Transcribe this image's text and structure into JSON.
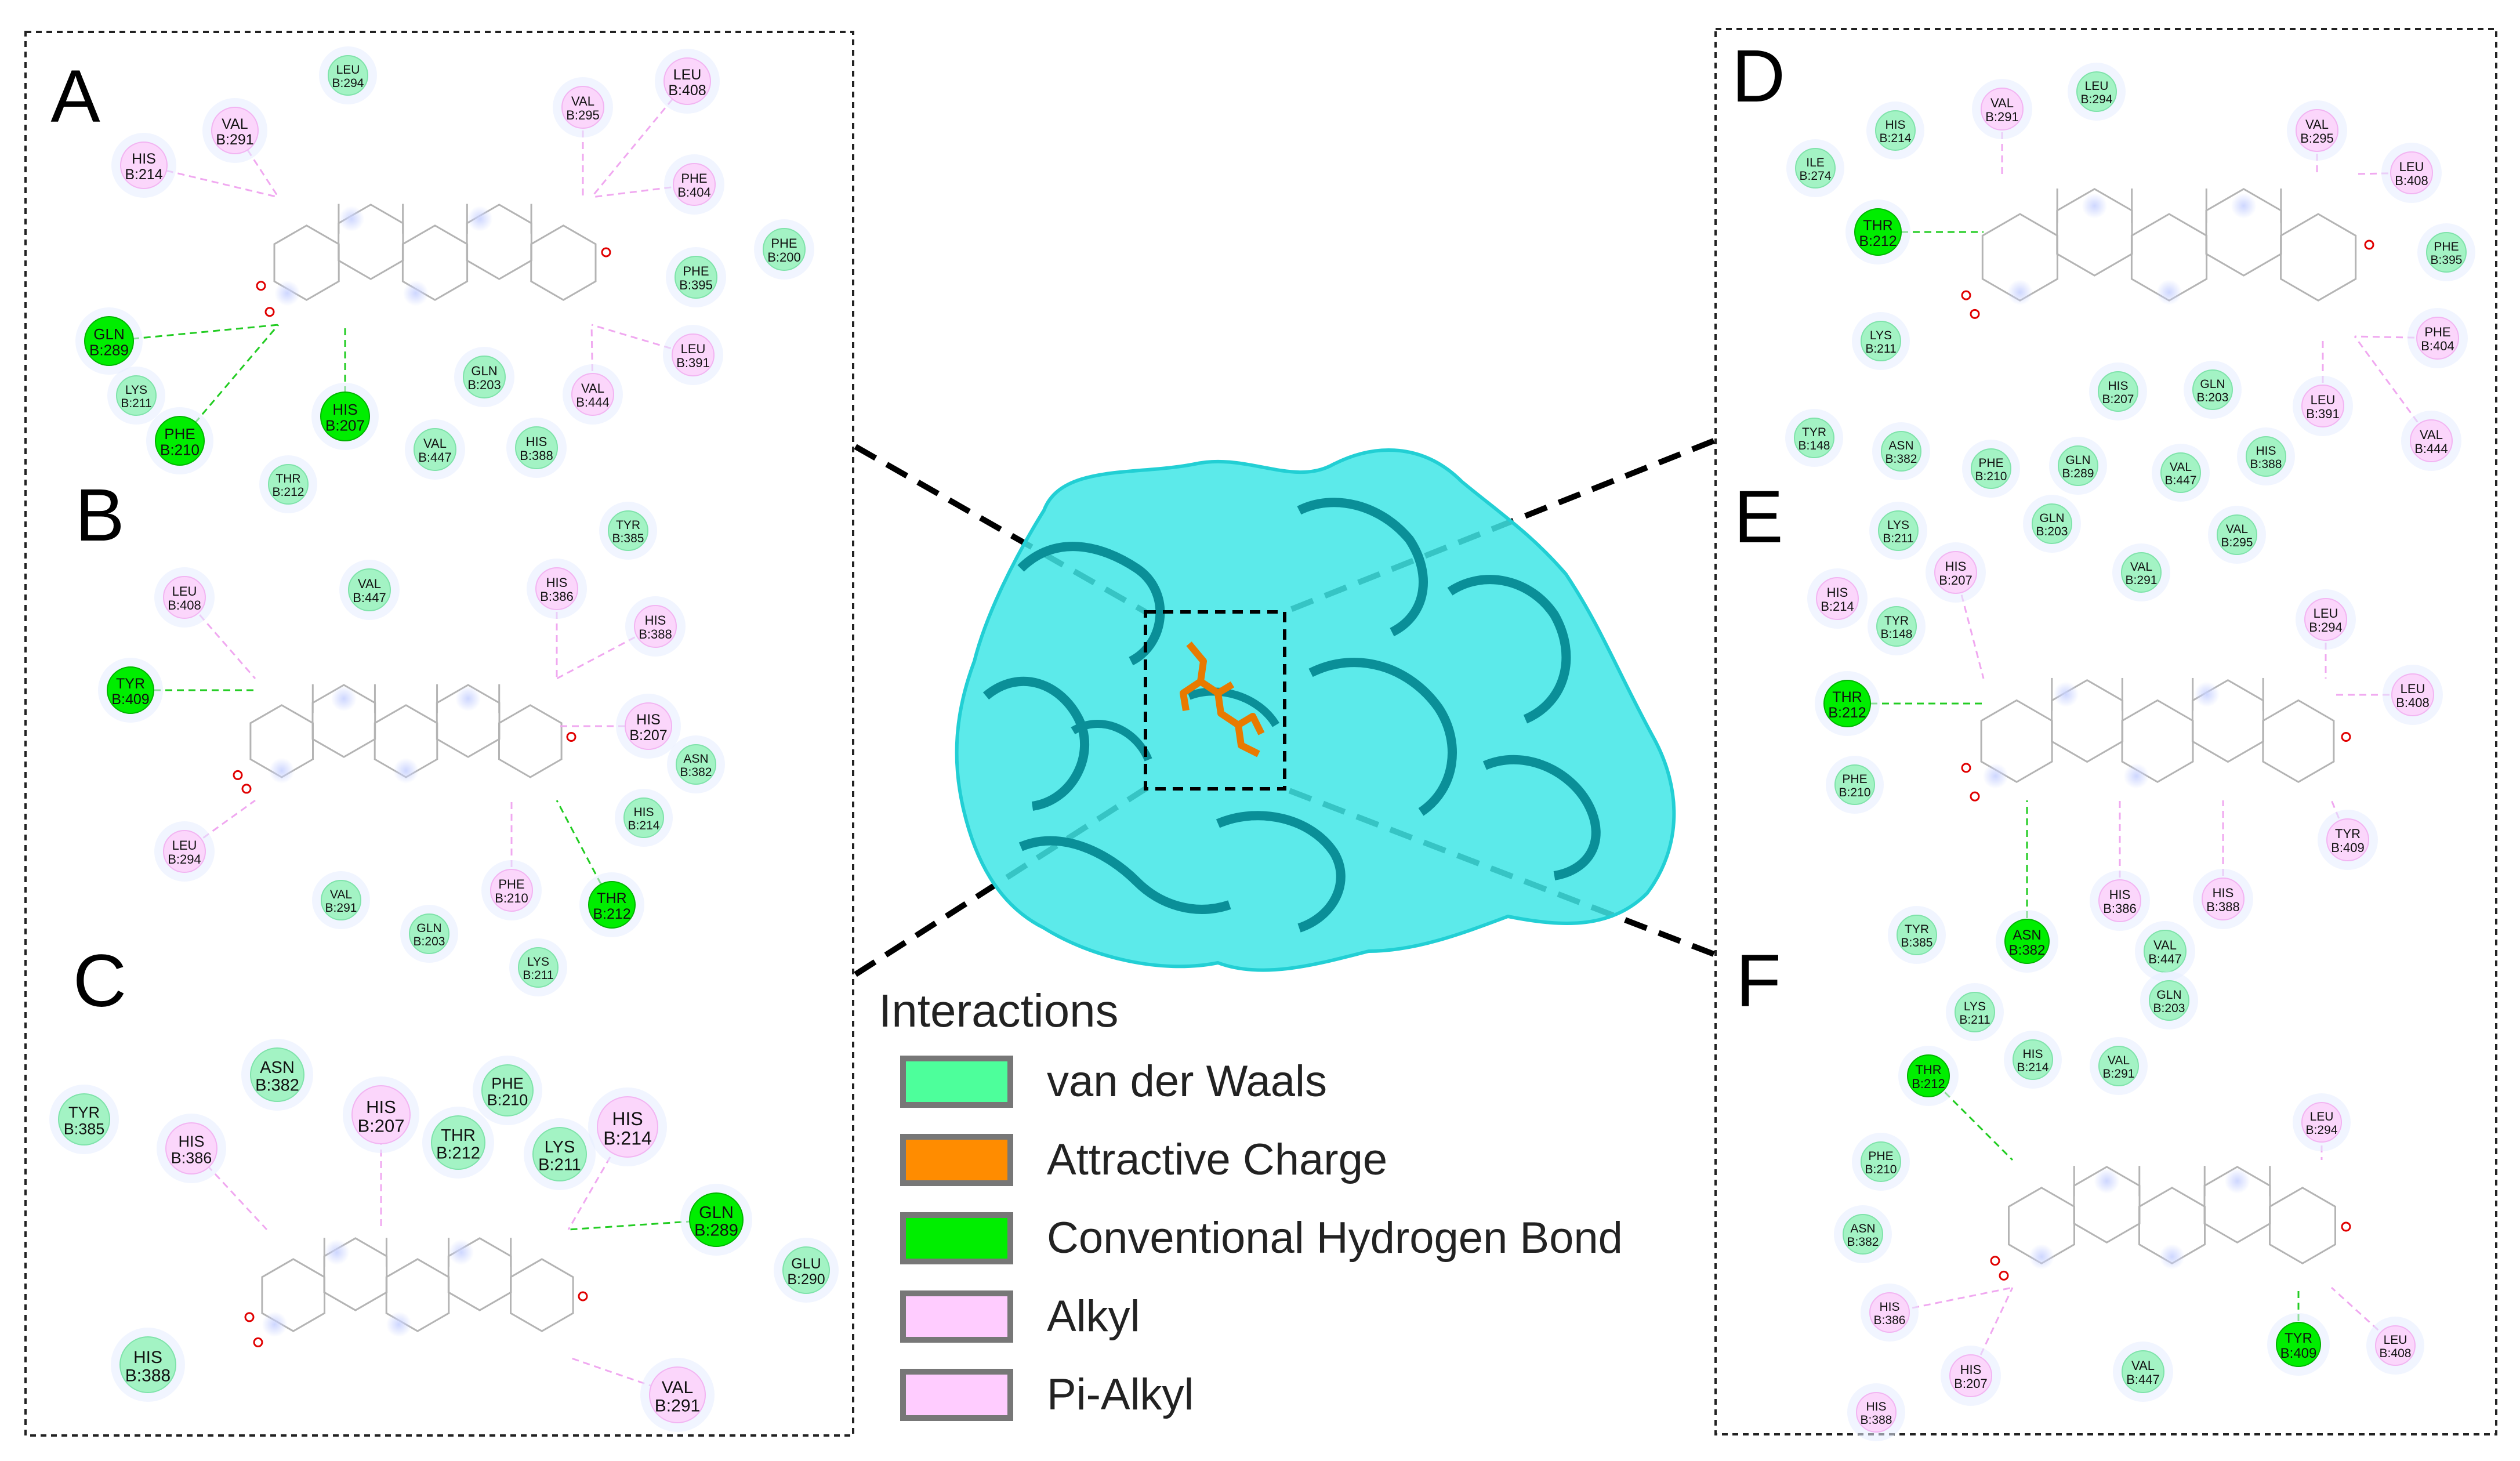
{
  "colors": {
    "vdw": "#4dff9b",
    "vdw_fill": "#a3f3c4",
    "charge": "#ff8c00",
    "hbond": "#00ee00",
    "alkyl": "#ffccff",
    "alkyl_fill": "#fbd6fb",
    "protein": "#00d8d8",
    "protein_dark": "#00a0a8",
    "ligand": "#e87a00"
  },
  "panels": [
    {
      "letter": "A",
      "residues": [
        {
          "name": "LEU",
          "num": "B:294",
          "type": "vdw"
        },
        {
          "name": "VAL",
          "num": "B:291",
          "type": "alkyl"
        },
        {
          "name": "VAL",
          "num": "B:295",
          "type": "alkyl"
        },
        {
          "name": "LEU",
          "num": "B:408",
          "type": "alkyl"
        },
        {
          "name": "HIS",
          "num": "B:214",
          "type": "alkyl"
        },
        {
          "name": "PHE",
          "num": "B:404",
          "type": "alkyl"
        },
        {
          "name": "PHE",
          "num": "B:200",
          "type": "vdw"
        },
        {
          "name": "PHE",
          "num": "B:395",
          "type": "vdw"
        },
        {
          "name": "GLN",
          "num": "B:289",
          "type": "hbond"
        },
        {
          "name": "LEU",
          "num": "B:391",
          "type": "alkyl"
        },
        {
          "name": "LYS",
          "num": "B:211",
          "type": "vdw"
        },
        {
          "name": "GLN",
          "num": "B:203",
          "type": "vdw"
        },
        {
          "name": "VAL",
          "num": "B:444",
          "type": "alkyl"
        },
        {
          "name": "HIS",
          "num": "B:207",
          "type": "hbond"
        },
        {
          "name": "PHE",
          "num": "B:210",
          "type": "hbond"
        },
        {
          "name": "VAL",
          "num": "B:447",
          "type": "vdw"
        },
        {
          "name": "HIS",
          "num": "B:388",
          "type": "vdw"
        },
        {
          "name": "THR",
          "num": "B:212",
          "type": "vdw"
        }
      ]
    },
    {
      "letter": "B",
      "residues": [
        {
          "name": "TYR",
          "num": "B:385",
          "type": "vdw"
        },
        {
          "name": "LEU",
          "num": "B:408",
          "type": "alkyl"
        },
        {
          "name": "VAL",
          "num": "B:447",
          "type": "vdw"
        },
        {
          "name": "HIS",
          "num": "B:386",
          "type": "alkyl"
        },
        {
          "name": "HIS",
          "num": "B:388",
          "type": "alkyl"
        },
        {
          "name": "TYR",
          "num": "B:409",
          "type": "hbond"
        },
        {
          "name": "HIS",
          "num": "B:207",
          "type": "alkyl"
        },
        {
          "name": "ASN",
          "num": "B:382",
          "type": "vdw"
        },
        {
          "name": "HIS",
          "num": "B:214",
          "type": "vdw"
        },
        {
          "name": "LEU",
          "num": "B:294",
          "type": "alkyl"
        },
        {
          "name": "VAL",
          "num": "B:291",
          "type": "vdw"
        },
        {
          "name": "PHE",
          "num": "B:210",
          "type": "alkyl"
        },
        {
          "name": "THR",
          "num": "B:212",
          "type": "hbond"
        },
        {
          "name": "GLN",
          "num": "B:203",
          "type": "vdw"
        },
        {
          "name": "LYS",
          "num": "B:211",
          "type": "vdw"
        }
      ]
    },
    {
      "letter": "C",
      "residues": [
        {
          "name": "TYR",
          "num": "B:385",
          "type": "vdw"
        },
        {
          "name": "ASN",
          "num": "B:382",
          "type": "vdw"
        },
        {
          "name": "HIS",
          "num": "B:386",
          "type": "alkyl"
        },
        {
          "name": "HIS",
          "num": "B:207",
          "type": "alkyl"
        },
        {
          "name": "PHE",
          "num": "B:210",
          "type": "vdw"
        },
        {
          "name": "THR",
          "num": "B:212",
          "type": "vdw"
        },
        {
          "name": "LYS",
          "num": "B:211",
          "type": "vdw"
        },
        {
          "name": "HIS",
          "num": "B:214",
          "type": "alkyl"
        },
        {
          "name": "GLN",
          "num": "B:289",
          "type": "hbond"
        },
        {
          "name": "GLU",
          "num": "B:290",
          "type": "vdw"
        },
        {
          "name": "HIS",
          "num": "B:388",
          "type": "vdw"
        },
        {
          "name": "VAL",
          "num": "B:291",
          "type": "alkyl"
        }
      ]
    },
    {
      "letter": "D",
      "residues": [
        {
          "name": "LEU",
          "num": "B:294",
          "type": "vdw"
        },
        {
          "name": "VAL",
          "num": "B:291",
          "type": "alkyl"
        },
        {
          "name": "HIS",
          "num": "B:214",
          "type": "vdw"
        },
        {
          "name": "VAL",
          "num": "B:295",
          "type": "alkyl"
        },
        {
          "name": "ILE",
          "num": "B:274",
          "type": "vdw"
        },
        {
          "name": "LEU",
          "num": "B:408",
          "type": "alkyl"
        },
        {
          "name": "THR",
          "num": "B:212",
          "type": "hbond"
        },
        {
          "name": "PHE",
          "num": "B:395",
          "type": "vdw"
        },
        {
          "name": "LYS",
          "num": "B:211",
          "type": "vdw"
        },
        {
          "name": "PHE",
          "num": "B:404",
          "type": "alkyl"
        },
        {
          "name": "HIS",
          "num": "B:207",
          "type": "vdw"
        },
        {
          "name": "GLN",
          "num": "B:203",
          "type": "vdw"
        },
        {
          "name": "LEU",
          "num": "B:391",
          "type": "alkyl"
        },
        {
          "name": "TYR",
          "num": "B:148",
          "type": "vdw"
        },
        {
          "name": "ASN",
          "num": "B:382",
          "type": "vdw"
        },
        {
          "name": "PHE",
          "num": "B:210",
          "type": "vdw"
        },
        {
          "name": "GLN",
          "num": "B:289",
          "type": "vdw"
        },
        {
          "name": "VAL",
          "num": "B:447",
          "type": "vdw"
        },
        {
          "name": "HIS",
          "num": "B:388",
          "type": "vdw"
        },
        {
          "name": "VAL",
          "num": "B:444",
          "type": "alkyl"
        },
        {
          "name": "LYS",
          "num": "B:211",
          "type": "vdw"
        },
        {
          "name": "GLN",
          "num": "B:203",
          "type": "vdw"
        },
        {
          "name": "VAL",
          "num": "B:295",
          "type": "vdw"
        },
        {
          "name": "VAL",
          "num": "B:291",
          "type": "vdw"
        }
      ]
    },
    {
      "letter": "E",
      "residues": [
        {
          "name": "HIS",
          "num": "B:214",
          "type": "alkyl"
        },
        {
          "name": "HIS",
          "num": "B:207",
          "type": "alkyl"
        },
        {
          "name": "TYR",
          "num": "B:148",
          "type": "vdw"
        },
        {
          "name": "LEU",
          "num": "B:294",
          "type": "alkyl"
        },
        {
          "name": "THR",
          "num": "B:212",
          "type": "hbond"
        },
        {
          "name": "LEU",
          "num": "B:408",
          "type": "alkyl"
        },
        {
          "name": "PHE",
          "num": "B:210",
          "type": "vdw"
        },
        {
          "name": "TYR",
          "num": "B:409",
          "type": "alkyl"
        },
        {
          "name": "HIS",
          "num": "B:386",
          "type": "alkyl"
        },
        {
          "name": "HIS",
          "num": "B:388",
          "type": "alkyl"
        },
        {
          "name": "TYR",
          "num": "B:385",
          "type": "vdw"
        },
        {
          "name": "ASN",
          "num": "B:382",
          "type": "hbond"
        },
        {
          "name": "VAL",
          "num": "B:447",
          "type": "vdw"
        },
        {
          "name": "GLN",
          "num": "B:203",
          "type": "vdw"
        }
      ]
    },
    {
      "letter": "F",
      "residues": [
        {
          "name": "LYS",
          "num": "B:211",
          "type": "vdw"
        },
        {
          "name": "HIS",
          "num": "B:214",
          "type": "vdw"
        },
        {
          "name": "VAL",
          "num": "B:291",
          "type": "vdw"
        },
        {
          "name": "THR",
          "num": "B:212",
          "type": "hbond"
        },
        {
          "name": "LEU",
          "num": "B:294",
          "type": "alkyl"
        },
        {
          "name": "PHE",
          "num": "B:210",
          "type": "vdw"
        },
        {
          "name": "ASN",
          "num": "B:382",
          "type": "vdw"
        },
        {
          "name": "HIS",
          "num": "B:386",
          "type": "alkyl"
        },
        {
          "name": "TYR",
          "num": "B:409",
          "type": "hbond"
        },
        {
          "name": "LEU",
          "num": "B:408",
          "type": "alkyl"
        },
        {
          "name": "HIS",
          "num": "B:207",
          "type": "alkyl"
        },
        {
          "name": "VAL",
          "num": "B:447",
          "type": "vdw"
        },
        {
          "name": "HIS",
          "num": "B:388",
          "type": "alkyl"
        }
      ]
    }
  ],
  "legend": {
    "title": "Interactions",
    "items": [
      {
        "label": "van der Waals",
        "color": "#4dff9b"
      },
      {
        "label": "Attractive Charge",
        "color": "#ff8c00"
      },
      {
        "label": "Conventional Hydrogen Bond",
        "color": "#00ee00"
      },
      {
        "label": "Alkyl",
        "color": "#ffccff"
      },
      {
        "label": "Pi-Alkyl",
        "color": "#ffccff"
      }
    ]
  }
}
